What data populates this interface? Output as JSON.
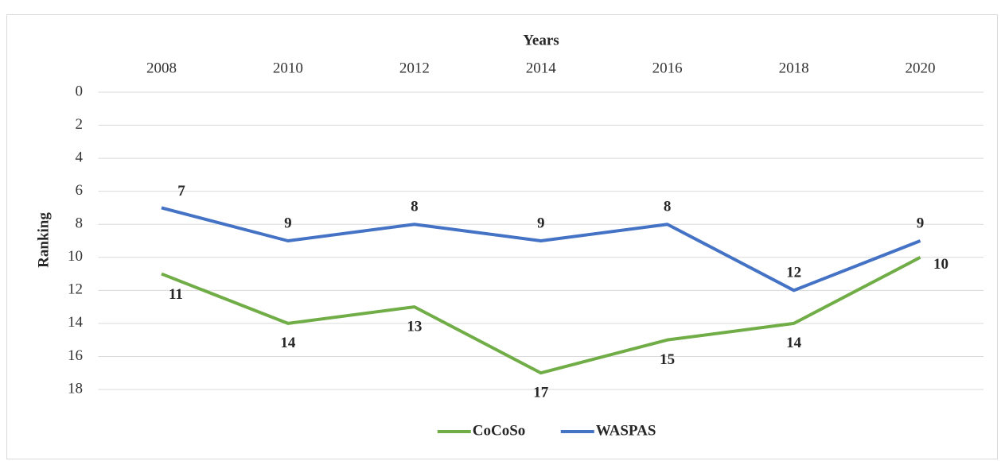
{
  "chart_data": {
    "type": "line",
    "x_label": "Years",
    "y_label": "Ranking",
    "categories": [
      "2008",
      "2010",
      "2012",
      "2014",
      "2016",
      "2018",
      "2020"
    ],
    "series": [
      {
        "name": "CoCoSo",
        "color": "#70ad47",
        "values": [
          11,
          14,
          13,
          17,
          15,
          14,
          10
        ]
      },
      {
        "name": "WASPAS",
        "color": "#4472c4",
        "values": [
          7,
          9,
          8,
          9,
          8,
          12,
          9
        ]
      }
    ],
    "ylim": [
      0,
      18
    ],
    "yticks": [
      0,
      2,
      4,
      6,
      8,
      10,
      12,
      14,
      16,
      18
    ],
    "y_reversed": true,
    "grid": true,
    "legend": "bottom"
  }
}
